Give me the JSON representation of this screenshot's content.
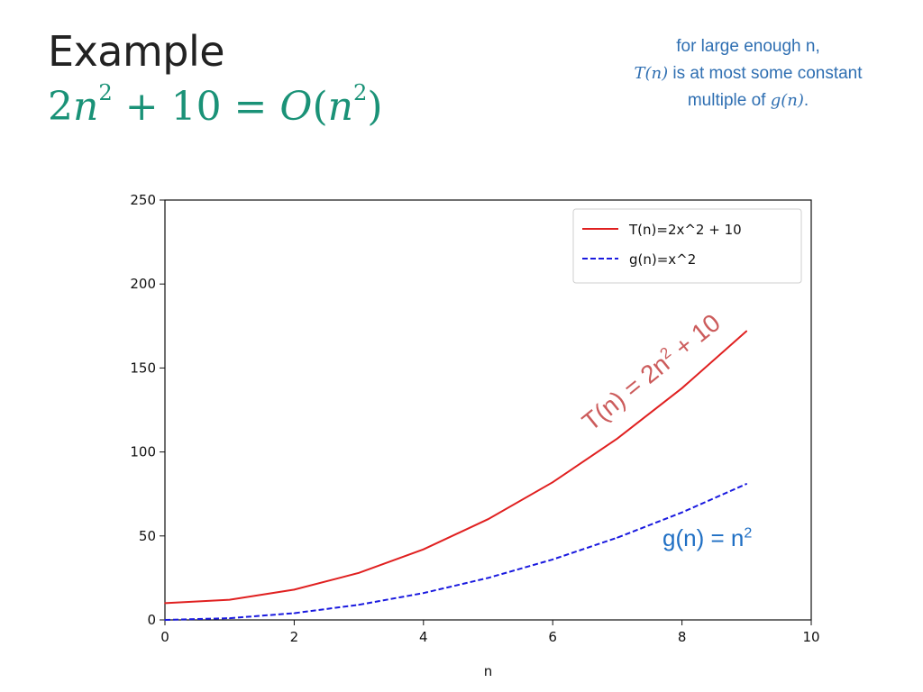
{
  "header": {
    "title": "Example",
    "formula": {
      "lhs_coef": "2",
      "var": "n",
      "exp": "2",
      "rest": " + 10 = ",
      "big_o": "O",
      "paren_open": "(",
      "paren_close": ")"
    }
  },
  "note": {
    "line1": "for large enough n,",
    "line2_fn": "T(n)",
    "line2_rest": " is at most some constant",
    "line3_pre": "multiple of ",
    "line3_fn": "g(n)",
    "line3_post": "."
  },
  "annotations": {
    "red_text": "T(n) = 2n",
    "red_exp": "2",
    "red_tail": " + 10",
    "blue_text": "g(n) = n",
    "blue_exp": "2"
  },
  "chart_data": {
    "type": "line",
    "xlabel": "n",
    "ylabel": "",
    "xlim": [
      0,
      10
    ],
    "ylim": [
      0,
      250
    ],
    "xticks": [
      0,
      2,
      4,
      6,
      8,
      10
    ],
    "yticks": [
      0,
      50,
      100,
      150,
      200,
      250
    ],
    "grid": false,
    "legend_position": "top-right",
    "x": [
      0,
      1,
      2,
      3,
      4,
      5,
      6,
      7,
      8,
      9
    ],
    "series": [
      {
        "name": "T(n)=2x^2 + 10",
        "values": [
          10,
          12,
          18,
          28,
          42,
          60,
          82,
          108,
          138,
          172
        ],
        "color": "#e02020",
        "style": "solid"
      },
      {
        "name": "g(n)=x^2",
        "values": [
          0,
          1,
          4,
          9,
          16,
          25,
          36,
          49,
          64,
          81
        ],
        "color": "#1a1adf",
        "style": "dashed"
      }
    ]
  }
}
